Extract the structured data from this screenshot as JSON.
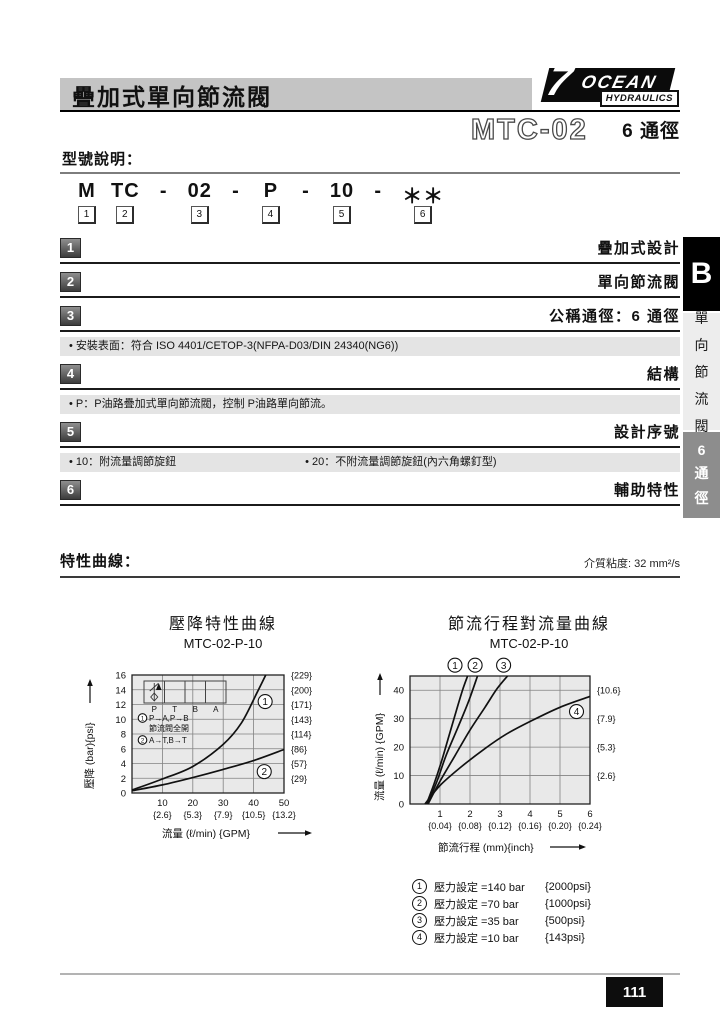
{
  "header": {
    "title": "疊加式單向節流閥",
    "logo": {
      "numeral": "7",
      "name": "OCEAN",
      "subtitle": "HYDRAULICS"
    },
    "model": "MTC-02",
    "size": "6 通徑"
  },
  "model_section": {
    "heading": "型號說明：",
    "code": [
      {
        "t": "M",
        "n": "1"
      },
      {
        "t": "TC",
        "n": "2"
      },
      {
        "t": "-"
      },
      {
        "t": "02",
        "n": "3"
      },
      {
        "t": "-"
      },
      {
        "t": "P",
        "n": "4"
      },
      {
        "t": "-"
      },
      {
        "t": "10",
        "n": "5"
      },
      {
        "t": "-"
      },
      {
        "t": "＊＊",
        "n": "6"
      }
    ],
    "rows": [
      {
        "num": "1",
        "title": "疊加式設計",
        "notes": []
      },
      {
        "num": "2",
        "title": "單向節流閥",
        "notes": []
      },
      {
        "num": "3",
        "title": "公稱通徑：6 通徑",
        "notes": [
          "• 安裝表面：符合 ISO 4401/CETOP-3(NFPA-D03/DIN 24340(NG6))"
        ]
      },
      {
        "num": "4",
        "title": "結構",
        "notes": [
          "• P：P油路疊加式單向節流閥，控制 P油路單向節流。"
        ]
      },
      {
        "num": "5",
        "title": "設計序號",
        "notes": [
          "• 10：附流量調節旋鈕",
          "• 20：不附流量調節旋鈕(內六角螺釘型)"
        ]
      },
      {
        "num": "6",
        "title": "輔助特性",
        "notes": []
      }
    ]
  },
  "sidebar": {
    "tab": "B",
    "label": "單向節流閥",
    "size": "6通徑"
  },
  "curves_section": {
    "heading": "特性曲線：",
    "viscosity": "介質粘度: 32 mm²/s"
  },
  "footer": {
    "page_number": "111"
  },
  "chart_data": [
    {
      "type": "line",
      "title": "壓降特性曲線",
      "subtitle": "MTC-02-P-10",
      "xlabel": "流量 (ℓ/min) {GPM}",
      "ylabel": "壓降 (bar){psi}",
      "xlim": [
        0,
        50
      ],
      "ylim": [
        0,
        16
      ],
      "grid": true,
      "legend_position": "inset-top-left",
      "x_ticks": [
        10,
        20,
        30,
        40,
        50
      ],
      "x_ticks_secondary": [
        "{2.6}",
        "{5.3}",
        "{7.9}",
        "{10.5}",
        "{13.2}"
      ],
      "y_ticks": [
        0,
        2,
        4,
        6,
        8,
        10,
        12,
        14,
        16
      ],
      "y_right_labels": [
        "{29}",
        "{57}",
        "{86}",
        "{114}",
        "{143}",
        "{171}",
        "{200}",
        "{229}"
      ],
      "series": [
        {
          "mark": "1",
          "name": "P→A,P→B 節流閥全開",
          "label_pos": [
            43.8,
            12.4
          ],
          "points": [
            [
              0,
              0.4
            ],
            [
              10,
              1.9
            ],
            [
              20,
              3.6
            ],
            [
              30,
              6.6
            ],
            [
              36,
              9.5
            ],
            [
              41,
              13.5
            ],
            [
              44,
              16
            ]
          ]
        },
        {
          "mark": "2",
          "name": "A→T,B→T",
          "label_pos": [
            43.5,
            2.9
          ],
          "points": [
            [
              0,
              0.3
            ],
            [
              10,
              1.1
            ],
            [
              20,
              2.1
            ],
            [
              30,
              3.2
            ],
            [
              40,
              4.4
            ],
            [
              50,
              5.9
            ]
          ]
        }
      ],
      "inset": {
        "ports": [
          "P",
          "T",
          "B",
          "A"
        ],
        "legend": [
          {
            "mark": "1",
            "text": "P→A,P→B"
          },
          {
            "mark": "",
            "text": "節流閥全開"
          },
          {
            "mark": "2",
            "text": "A→T,B→T"
          }
        ]
      }
    },
    {
      "type": "line",
      "title": "節流行程對流量曲線",
      "subtitle": "MTC-02-P-10",
      "xlabel": "節流行程 (mm){inch}",
      "ylabel": "流量 (ℓ/min) {GPM}",
      "xlim": [
        0,
        6
      ],
      "ylim": [
        0,
        45
      ],
      "grid": true,
      "legend_position": "below",
      "x_ticks": [
        1,
        2,
        3,
        4,
        5,
        6
      ],
      "x_ticks_secondary": [
        "{0.04}",
        "{0.08}",
        "{0.12}",
        "{0.16}",
        "{0.20}",
        "{0.24}"
      ],
      "y_ticks": [
        0,
        10,
        20,
        30,
        40
      ],
      "y_right_labels": [
        "{2.6}",
        "{5.3}",
        "{7.9}",
        "{10.6}"
      ],
      "series": [
        {
          "mark": "1",
          "label_pos": [
            1.5,
            48.8
          ],
          "points": [
            [
              0.55,
              0
            ],
            [
              0.8,
              7
            ],
            [
              1.05,
              15
            ],
            [
              1.3,
              24
            ],
            [
              1.55,
              33
            ],
            [
              1.75,
              40
            ],
            [
              1.92,
              45
            ]
          ]
        },
        {
          "mark": "2",
          "label_pos": [
            2.17,
            48.8
          ],
          "points": [
            [
              0.58,
              0
            ],
            [
              0.9,
              8
            ],
            [
              1.2,
              17
            ],
            [
              1.6,
              27
            ],
            [
              1.95,
              36
            ],
            [
              2.25,
              45
            ]
          ]
        },
        {
          "mark": "3",
          "label_pos": [
            3.12,
            48.8
          ],
          "points": [
            [
              0.6,
              0
            ],
            [
              1,
              8
            ],
            [
              1.5,
              17
            ],
            [
              2,
              26
            ],
            [
              2.5,
              34
            ],
            [
              2.9,
              40.5
            ],
            [
              3.25,
              45
            ]
          ]
        },
        {
          "mark": "4",
          "label_pos": [
            5.55,
            32.5
          ],
          "points": [
            [
              0.5,
              0
            ],
            [
              1,
              6.5
            ],
            [
              1.7,
              13
            ],
            [
              2.5,
              19.5
            ],
            [
              3.2,
              24.5
            ],
            [
              4,
              29
            ],
            [
              5,
              34
            ],
            [
              6,
              37.8
            ]
          ]
        }
      ],
      "legend": [
        {
          "mark": "1",
          "text": "壓力設定 =140 bar",
          "psi": "{2000psi}"
        },
        {
          "mark": "2",
          "text": "壓力設定 =70 bar",
          "psi": "{1000psi}"
        },
        {
          "mark": "3",
          "text": "壓力設定 =35 bar",
          "psi": "{500psi}"
        },
        {
          "mark": "4",
          "text": "壓力設定 =10 bar",
          "psi": "{143psi}"
        }
      ]
    }
  ]
}
